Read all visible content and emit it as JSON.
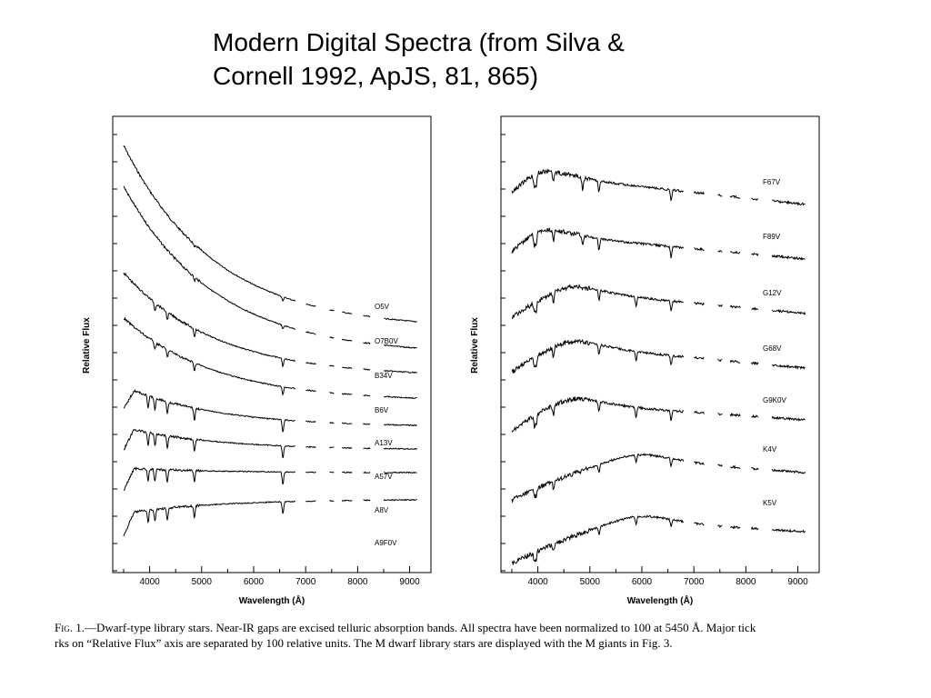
{
  "slide": {
    "title_line1": "Modern Digital Spectra (from Silva &",
    "title_line2": "Cornell 1992, ApJS, 81, 865)"
  },
  "caption": {
    "fig_label": "Fig.",
    "line1_rest": "1.—Dwarf-type library stars. Near-IR gaps are excised telluric absorption bands. All spectra have been normalized to 100 at 5450 Å. Major tick",
    "line2": "rks on “Relative Flux” axis are separated by 100 relative units. The M dwarf library stars are displayed with the M giants in Fig. 3."
  },
  "chart_data": [
    {
      "type": "line",
      "xlabel": "Wavelength (Å)",
      "ylabel": "Relative Flux",
      "xlim": [
        3500,
        9200
      ],
      "x_ticks": [
        4000,
        5000,
        6000,
        7000,
        8000,
        9000
      ],
      "grid": false,
      "series": [
        {
          "name": "O5V",
          "class": "O"
        },
        {
          "name": "O7B0V",
          "class": "O"
        },
        {
          "name": "B34V",
          "class": "B"
        },
        {
          "name": "B6V",
          "class": "B"
        },
        {
          "name": "A13V",
          "class": "A"
        },
        {
          "name": "A57V",
          "class": "A"
        },
        {
          "name": "A8V",
          "class": "A"
        },
        {
          "name": "A9F0V",
          "class": "A"
        }
      ]
    },
    {
      "type": "line",
      "xlabel": "Wavelength (Å)",
      "ylabel": "Relative Flux",
      "xlim": [
        3500,
        9200
      ],
      "x_ticks": [
        4000,
        5000,
        6000,
        7000,
        8000,
        9000
      ],
      "grid": false,
      "series": [
        {
          "name": "F67V",
          "class": "F"
        },
        {
          "name": "F89V",
          "class": "F"
        },
        {
          "name": "G12V",
          "class": "G"
        },
        {
          "name": "G68V",
          "class": "G"
        },
        {
          "name": "G9K0V",
          "class": "G"
        },
        {
          "name": "K4V",
          "class": "K"
        },
        {
          "name": "K5V",
          "class": "K"
        }
      ]
    }
  ]
}
